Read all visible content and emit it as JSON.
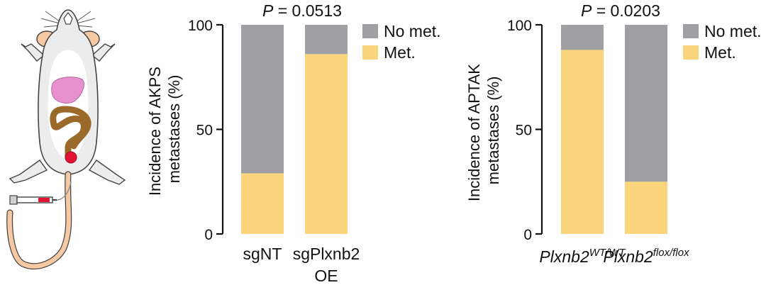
{
  "chart_data": [
    {
      "type": "bar",
      "stacked": true,
      "categories": [
        "sgNT",
        "sgPlxnb2 OE"
      ],
      "category_lines": [
        [
          "sgNT"
        ],
        [
          "sgPlxnb2",
          "OE"
        ]
      ],
      "ylabel_lines": [
        "Incidence of AKPS",
        "metastases (%)"
      ],
      "ylim": [
        0,
        100
      ],
      "yticks": [
        0,
        50,
        100
      ],
      "stat_label": "P",
      "stat_value": " = 0.0513",
      "series": [
        {
          "name": "Met.",
          "values": [
            29,
            86
          ],
          "color": "#fbd57c"
        },
        {
          "name": "No met.",
          "values": [
            71,
            14
          ],
          "color": "#a0a0a4"
        }
      ],
      "legend": [
        {
          "label": "No met.",
          "color": "#a0a0a4"
        },
        {
          "label": "Met.",
          "color": "#fbd57c"
        }
      ],
      "legend_position": "top-right"
    },
    {
      "type": "bar",
      "stacked": true,
      "categories": [
        "Plxnb2WT/WT",
        "Plxnb2flox/flox"
      ],
      "category_parts": [
        {
          "base": "Plxnb2",
          "sup": "WT/WT"
        },
        {
          "base": "Plxnb2",
          "sup": "flox/flox"
        }
      ],
      "ylabel_lines": [
        "Incidence of APTAK",
        "metastases (%)"
      ],
      "ylim": [
        0,
        100
      ],
      "yticks": [
        0,
        50,
        100
      ],
      "stat_label": "P",
      "stat_value": " = 0.0203",
      "series": [
        {
          "name": "Met.",
          "values": [
            88,
            25
          ],
          "color": "#fbd57c"
        },
        {
          "name": "No met.",
          "values": [
            12,
            75
          ],
          "color": "#a0a0a4"
        }
      ],
      "legend": [
        {
          "label": "No met.",
          "color": "#a0a0a4"
        },
        {
          "label": "Met.",
          "color": "#fbd57c"
        }
      ],
      "legend_position": "top-right"
    }
  ],
  "illustration": {
    "subject": "mouse-with-intrarectal-injection",
    "colors": {
      "body": "#ececec",
      "liver": "#e88fd0",
      "colon": "#9b6a2a",
      "tumor": "#e01535",
      "tail": "#f6c9a3",
      "ears": "#f6c9a3"
    }
  }
}
